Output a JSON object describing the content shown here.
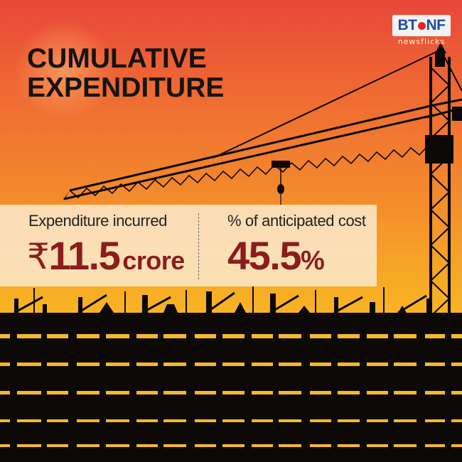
{
  "title": {
    "line1": "CUMULATIVE",
    "line2": "EXPENDITURE"
  },
  "logo": {
    "brand_part1": "BT",
    "brand_part2": "NF",
    "subtext": "newsflicks"
  },
  "stats": [
    {
      "label": "Expenditure incurred",
      "currency_symbol": "₹",
      "value": "11.5",
      "unit": "crore"
    },
    {
      "label": "% of anticipated cost",
      "value": "45.5",
      "unit": "%"
    }
  ],
  "colors": {
    "sky_top": "#e8473a",
    "sky_bottom": "#f9c41f",
    "value_text": "#8a1d1d",
    "band": "#fce6c4",
    "silhouette": "#0c0907"
  },
  "icons": {
    "background": "construction-crane-silhouette",
    "logo_dot": "ball-icon"
  }
}
